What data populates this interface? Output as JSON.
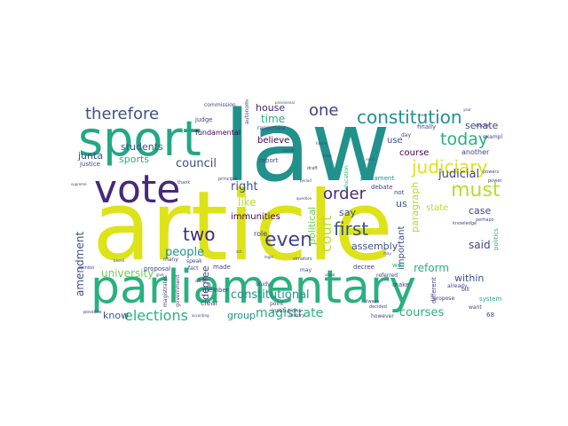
{
  "palette": {
    "yellow": "#dde318",
    "lime": "#b5de2b",
    "green": "#6ece58",
    "teal": "#2ab07f",
    "seagreen": "#22a884",
    "cyan": "#21918c",
    "blue": "#3b528b",
    "indigo": "#414487",
    "purple": "#482878",
    "dark": "#440154"
  },
  "words": [
    {
      "text": "article"
    },
    {
      "text": "law"
    },
    {
      "text": "parliamentary"
    },
    {
      "text": "sport"
    },
    {
      "text": "vote"
    },
    {
      "text": "constitution"
    },
    {
      "text": "therefore"
    },
    {
      "text": "judiciary"
    },
    {
      "text": "today"
    },
    {
      "text": "must"
    },
    {
      "text": "order"
    },
    {
      "text": "one"
    },
    {
      "text": "first"
    },
    {
      "text": "even"
    },
    {
      "text": "two"
    },
    {
      "text": "court"
    },
    {
      "text": "elections"
    },
    {
      "text": "magistrate"
    },
    {
      "text": "courses"
    },
    {
      "text": "constitutional"
    },
    {
      "text": "reform"
    },
    {
      "text": "people"
    },
    {
      "text": "judicial"
    },
    {
      "text": "council"
    },
    {
      "text": "amendment"
    },
    {
      "text": "university"
    },
    {
      "text": "right"
    },
    {
      "text": "like"
    },
    {
      "text": "students"
    },
    {
      "text": "sports"
    },
    {
      "text": "junta"
    },
    {
      "text": "time"
    },
    {
      "text": "paragraph"
    },
    {
      "text": "house"
    },
    {
      "text": "senate"
    },
    {
      "text": "course"
    },
    {
      "text": "use"
    },
    {
      "text": "case"
    },
    {
      "text": "said"
    },
    {
      "text": "within"
    },
    {
      "text": "assembly"
    },
    {
      "text": "immunities"
    },
    {
      "text": "believe"
    },
    {
      "text": "group"
    },
    {
      "text": "know"
    },
    {
      "text": "degree"
    },
    {
      "text": "political"
    },
    {
      "text": "important"
    },
    {
      "text": "state"
    },
    {
      "text": "us"
    },
    {
      "text": "say"
    },
    {
      "text": "fundamental"
    },
    {
      "text": "report"
    },
    {
      "text": "parliament"
    },
    {
      "text": "another"
    },
    {
      "text": "politics"
    },
    {
      "text": "commission"
    },
    {
      "text": "justice"
    },
    {
      "text": "role"
    },
    {
      "text": "proposal"
    },
    {
      "text": "made"
    },
    {
      "text": "member"
    },
    {
      "text": "clear"
    },
    {
      "text": "decree"
    },
    {
      "text": "make"
    },
    {
      "text": "different"
    },
    {
      "text": "system"
    },
    {
      "text": "magistrates"
    },
    {
      "text": "government"
    },
    {
      "text": "education"
    },
    {
      "text": "debate"
    },
    {
      "text": "judge"
    },
    {
      "text": "autonomous"
    },
    {
      "text": "many"
    },
    {
      "text": "institutions"
    },
    {
      "text": "study"
    },
    {
      "text": "point"
    },
    {
      "text": "history"
    },
    {
      "text": "finally"
    },
    {
      "text": "already"
    },
    {
      "text": "well"
    },
    {
      "text": "propose"
    },
    {
      "text": "example"
    },
    {
      "text": "not"
    },
    {
      "text": "rapporteur"
    },
    {
      "text": "day"
    },
    {
      "text": "referred"
    },
    {
      "text": "however"
    },
    {
      "text": "decided"
    },
    {
      "text": "may"
    },
    {
      "text": "senators"
    },
    {
      "text": "able"
    },
    {
      "text": "fact"
    },
    {
      "text": "speak"
    },
    {
      "text": "bill"
    },
    {
      "text": "doctor"
    },
    {
      "text": "power"
    },
    {
      "text": "perhaps"
    },
    {
      "text": "68"
    },
    {
      "text": "want"
    },
    {
      "text": "knowledge"
    },
    {
      "text": "always"
    },
    {
      "text": "draft"
    },
    {
      "text": "principle"
    },
    {
      "text": "thank"
    },
    {
      "text": "provisional"
    },
    {
      "text": "result"
    },
    {
      "text": "possible"
    },
    {
      "text": "opinion"
    },
    {
      "text": "powers"
    },
    {
      "text": "supreme"
    },
    {
      "text": "future"
    },
    {
      "text": "according"
    },
    {
      "text": "legal"
    },
    {
      "text": "social"
    },
    {
      "text": "need"
    },
    {
      "text": "question"
    },
    {
      "text": "period"
    },
    {
      "text": "body"
    },
    {
      "text": "give"
    },
    {
      "text": "act"
    },
    {
      "text": "may"
    },
    {
      "text": "based"
    },
    {
      "text": "year"
    },
    {
      "text": "new"
    }
  ]
}
